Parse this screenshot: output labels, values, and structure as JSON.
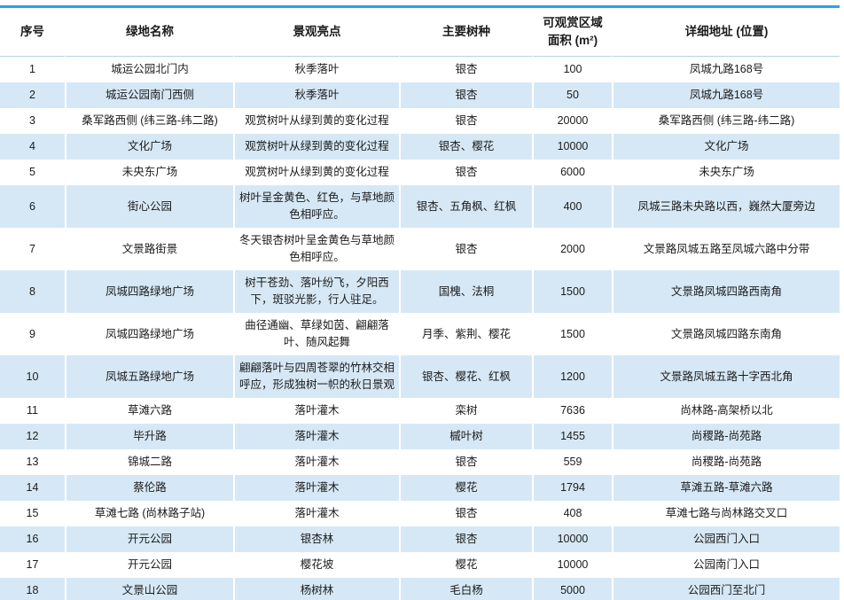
{
  "colors": {
    "accent_border": "#2ca3dc",
    "stripe_row_bg": "#d6e8f5",
    "header_separator": "#b3d4ea",
    "text": "#1b1b1b"
  },
  "table": {
    "columns": [
      {
        "label": "序号"
      },
      {
        "label": "绿地名称"
      },
      {
        "label": "景观亮点"
      },
      {
        "label": "主要树种"
      },
      {
        "label": "可观赏区域面积 (m²)"
      },
      {
        "label": "详细地址 (位置)"
      }
    ],
    "rows": [
      {
        "no": "1",
        "name": "城运公园北门内",
        "highlight": "秋季落叶",
        "species": "银杏",
        "area": "100",
        "address": "凤城九路168号"
      },
      {
        "no": "2",
        "name": "城运公园南门西侧",
        "highlight": "秋季落叶",
        "species": "银杏",
        "area": "50",
        "address": "凤城九路168号"
      },
      {
        "no": "3",
        "name": "桑军路西侧 (纬三路-纬二路)",
        "highlight": "观赏树叶从绿到黄的变化过程",
        "species": "银杏",
        "area": "20000",
        "address": "桑军路西侧 (纬三路-纬二路)"
      },
      {
        "no": "4",
        "name": "文化广场",
        "highlight": "观赏树叶从绿到黄的变化过程",
        "species": "银杏、樱花",
        "area": "10000",
        "address": "文化广场"
      },
      {
        "no": "5",
        "name": "未央东广场",
        "highlight": "观赏树叶从绿到黄的变化过程",
        "species": "银杏",
        "area": "6000",
        "address": "未央东广场"
      },
      {
        "no": "6",
        "name": "街心公园",
        "highlight": "树叶呈金黄色、红色，与草地颜色相呼应。",
        "species": "银杏、五角枫、红枫",
        "area": "400",
        "address": "凤城三路未央路以西，巍然大厦旁边"
      },
      {
        "no": "7",
        "name": "文景路街景",
        "highlight": "冬天银杏树叶呈金黄色与草地颜色相呼应。",
        "species": "银杏",
        "area": "2000",
        "address": "文景路凤城五路至凤城六路中分带"
      },
      {
        "no": "8",
        "name": "凤城四路绿地广场",
        "highlight": "树干苍劲、落叶纷飞，夕阳西下，斑驳光影，行人驻足。",
        "species": "国槐、法桐",
        "area": "1500",
        "address": "文景路凤城四路西南角"
      },
      {
        "no": "9",
        "name": "凤城四路绿地广场",
        "highlight": "曲径通幽、草绿如茵、翩翩落叶、随风起舞",
        "species": "月季、紫荆、樱花",
        "area": "1500",
        "address": "文景路凤城四路东南角"
      },
      {
        "no": "10",
        "name": "凤城五路绿地广场",
        "highlight": "翩翩落叶与四周苍翠的竹林交相呼应，形成独树一帜的秋日景观",
        "species": "银杏、樱花、红枫",
        "area": "1200",
        "address": "文景路凤城五路十字西北角"
      },
      {
        "no": "11",
        "name": "草滩六路",
        "highlight": "落叶灌木",
        "species": "栾树",
        "area": "7636",
        "address": "尚林路-高架桥以北"
      },
      {
        "no": "12",
        "name": "毕升路",
        "highlight": "落叶灌木",
        "species": "槭叶树",
        "area": "1455",
        "address": "尚稷路-尚苑路"
      },
      {
        "no": "13",
        "name": "锦城二路",
        "highlight": "落叶灌木",
        "species": "银杏",
        "area": "559",
        "address": "尚稷路-尚苑路"
      },
      {
        "no": "14",
        "name": "蔡伦路",
        "highlight": "落叶灌木",
        "species": "樱花",
        "area": "1794",
        "address": "草滩五路-草滩六路"
      },
      {
        "no": "15",
        "name": "草滩七路 (尚林路子站)",
        "highlight": "落叶灌木",
        "species": "银杏",
        "area": "408",
        "address": "草滩七路与尚林路交叉口"
      },
      {
        "no": "16",
        "name": "开元公园",
        "highlight": "银杏林",
        "species": "银杏",
        "area": "10000",
        "address": "公园西门入口"
      },
      {
        "no": "17",
        "name": "开元公园",
        "highlight": "樱花坡",
        "species": "樱花",
        "area": "10000",
        "address": "公园南门入口"
      },
      {
        "no": "18",
        "name": "文景山公园",
        "highlight": "杨树林",
        "species": "毛白杨",
        "area": "5000",
        "address": "公园西门至北门"
      }
    ]
  }
}
